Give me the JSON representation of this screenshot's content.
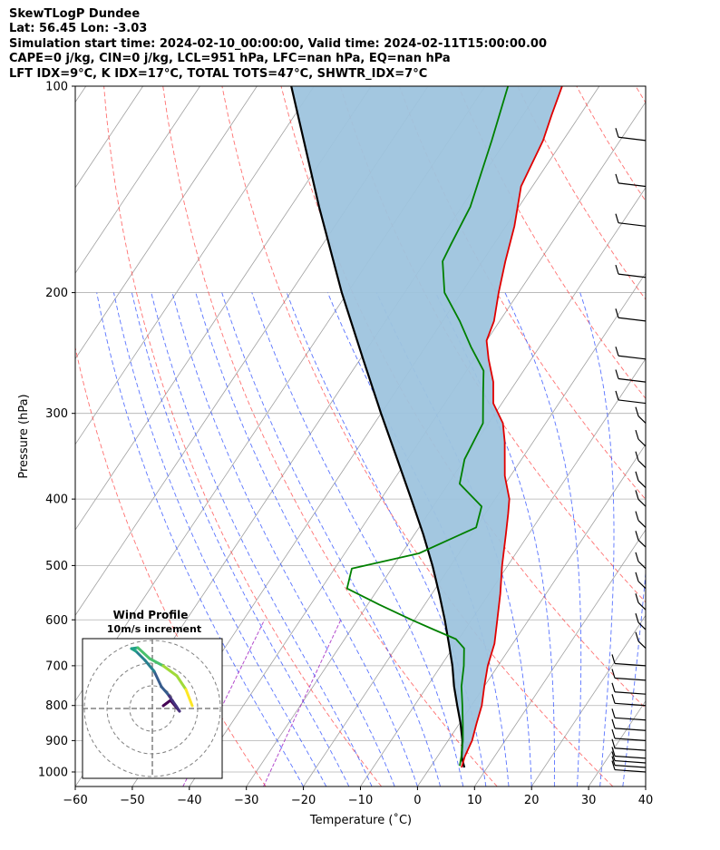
{
  "header": {
    "line1": "SkewTLogP Dundee",
    "line2": "Lat: 56.45   Lon: -3.03",
    "line3": "Simulation start time: 2024-02-10_00:00:00, Valid time: 2024-02-11T15:00:00.00",
    "line4": "CAPE=0 j/kg, CIN=0 j/kg, LCL=951 hPa, LFC=nan hPa, EQ=nan hPa",
    "line5": "LFT IDX=9°C, K IDX=17°C, TOTAL TOTS=47°C, SHWTR_IDX=7°C"
  },
  "colors": {
    "temperature": "#e00000",
    "dewpoint": "#008000",
    "parcel": "#000000",
    "cin_fill": "#9ec4de",
    "dry_adiabat": "#ff4040",
    "moist_adiabat": "#3050ff",
    "mixing_ratio": "#a020c0",
    "isotherm": "#a0a0a0"
  },
  "chart_data": {
    "type": "line",
    "xlabel": "Temperature (˚C)",
    "ylabel": "Pressure (hPa)",
    "xlim": [
      -60,
      40
    ],
    "ylim": [
      1050,
      100
    ],
    "y_scale": "log",
    "x_ticks": [
      "−60",
      "−50",
      "−40",
      "−30",
      "−20",
      "−10",
      "0",
      "10",
      "20",
      "30",
      "40"
    ],
    "y_ticks": [
      "100",
      "200",
      "300",
      "400",
      "500",
      "600",
      "700",
      "800",
      "900",
      "1000"
    ],
    "grid": true,
    "series": [
      {
        "key": "temperature",
        "pressure": [
          985,
          950,
          900,
          850,
          800,
          750,
          700,
          650,
          600,
          550,
          500,
          450,
          420,
          400,
          370,
          330,
          310,
          290,
          270,
          250,
          235,
          220,
          200,
          180,
          160,
          140,
          120,
          110,
          100
        ],
        "temperature": [
          5.5,
          4.8,
          4.2,
          3.0,
          1.8,
          0.0,
          -1.8,
          -3.2,
          -5.5,
          -8.0,
          -11.0,
          -14.0,
          -16.0,
          -17.5,
          -21.0,
          -25.0,
          -27.5,
          -31.5,
          -34.0,
          -37.5,
          -40.0,
          -41.0,
          -43.5,
          -46.0,
          -48.5,
          -52.0,
          -53.5,
          -55.0,
          -56.5
        ]
      },
      {
        "key": "dewpoint",
        "pressure": [
          980,
          950,
          900,
          850,
          800,
          750,
          700,
          660,
          640,
          620,
          600,
          570,
          540,
          505,
          480,
          440,
          410,
          380,
          350,
          310,
          280,
          260,
          240,
          220,
          200,
          180,
          170,
          150,
          120,
          100
        ],
        "temperature": [
          5.0,
          4.2,
          2.6,
          0.6,
          -1.6,
          -4.0,
          -6.0,
          -8.0,
          -10.5,
          -15.5,
          -20.5,
          -28.0,
          -35.5,
          -37.0,
          -27.0,
          -20.0,
          -21.5,
          -28.0,
          -30.0,
          -31.0,
          -34.5,
          -37.0,
          -42.0,
          -47.0,
          -53.0,
          -57.0,
          -57.5,
          -58.5,
          -62.5,
          -66.0
        ]
      },
      {
        "key": "parcel",
        "pressure": [
          985,
          951,
          900,
          850,
          800,
          750,
          700,
          650,
          600,
          550,
          500,
          450,
          400,
          350,
          300,
          250,
          200,
          150,
          100
        ],
        "temperature": [
          6.0,
          4.3,
          2.5,
          0.2,
          -2.5,
          -5.3,
          -8.0,
          -11.2,
          -14.7,
          -18.7,
          -23.2,
          -28.5,
          -34.7,
          -41.8,
          -50.0,
          -59.5,
          -71.0,
          -85.0,
          -104.0
        ]
      }
    ]
  },
  "wind_profile": {
    "title": "Wind Profile",
    "subtitle": "10m/s increment"
  }
}
